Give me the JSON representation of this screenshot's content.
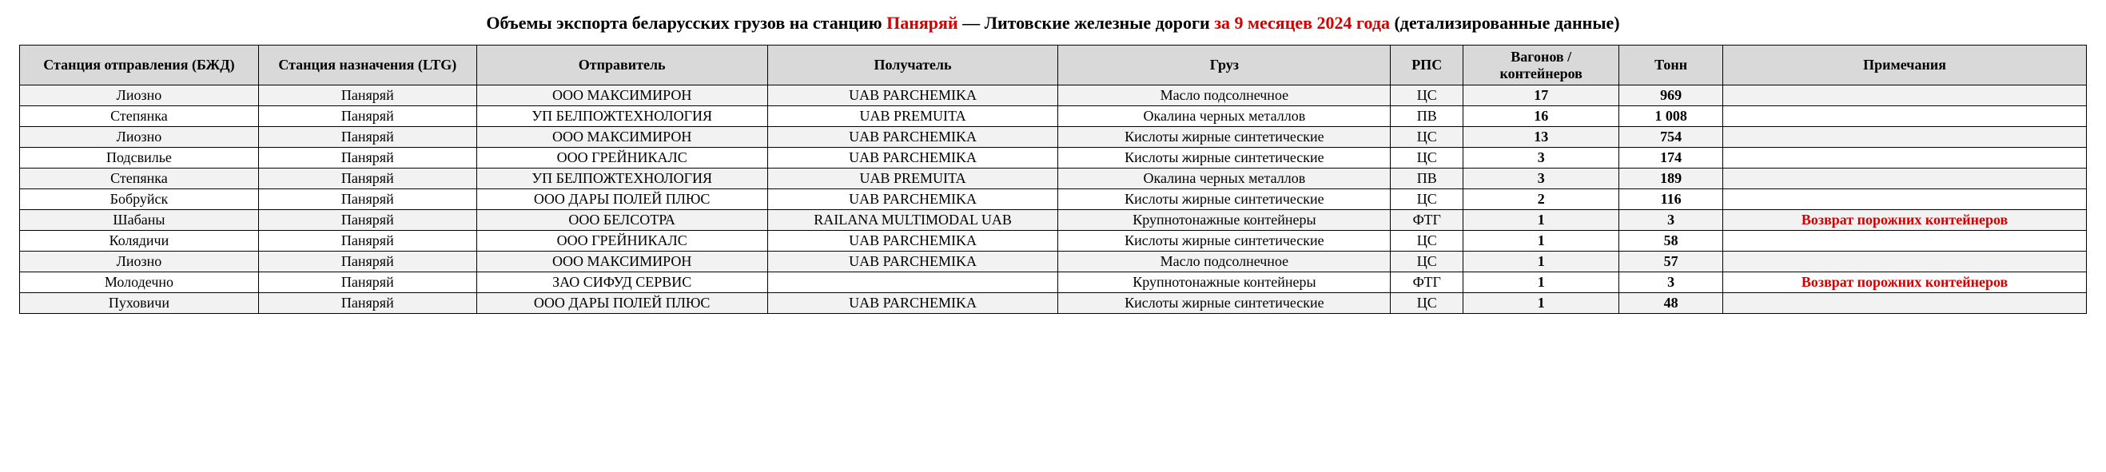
{
  "title": {
    "part1": "Объемы экспорта беларусских грузов на станцию ",
    "station": "Паняряй",
    "part2": " — Литовские железные дороги ",
    "period": "за 9 месяцев 2024 года",
    "part3": " (детализированные данные)"
  },
  "columns": [
    "Станция отправления (БЖД)",
    "Станция назначения (LTG)",
    "Отправитель",
    "Получатель",
    "Груз",
    "РПС",
    "Вагонов / контейнеров",
    "Тонн",
    "Примечания"
  ],
  "rows": [
    {
      "origin": "Лиозно",
      "dest": "Паняряй",
      "sender": "ООО МАКСИМИРОН",
      "recv": "UAB PARCHEMIKA",
      "cargo": "Масло подсолнечное",
      "rps": "ЦС",
      "wagons": "17",
      "tons": "969",
      "note": ""
    },
    {
      "origin": "Степянка",
      "dest": "Паняряй",
      "sender": "УП БЕЛПОЖТЕХНОЛОГИЯ",
      "recv": "UAB PREMUITA",
      "cargo": "Окалина черных металлов",
      "rps": "ПВ",
      "wagons": "16",
      "tons": "1 008",
      "note": ""
    },
    {
      "origin": "Лиозно",
      "dest": "Паняряй",
      "sender": "ООО МАКСИМИРОН",
      "recv": "UAB PARCHEMIKA",
      "cargo": "Кислоты жирные синтетические",
      "rps": "ЦС",
      "wagons": "13",
      "tons": "754",
      "note": ""
    },
    {
      "origin": "Подсвилье",
      "dest": "Паняряй",
      "sender": "ООО ГРЕЙНИКАЛС",
      "recv": "UAB PARCHEMIKA",
      "cargo": "Кислоты жирные синтетические",
      "rps": "ЦС",
      "wagons": "3",
      "tons": "174",
      "note": ""
    },
    {
      "origin": "Степянка",
      "dest": "Паняряй",
      "sender": "УП БЕЛПОЖТЕХНОЛОГИЯ",
      "recv": "UAB PREMUITA",
      "cargo": "Окалина черных металлов",
      "rps": "ПВ",
      "wagons": "3",
      "tons": "189",
      "note": ""
    },
    {
      "origin": "Бобруйск",
      "dest": "Паняряй",
      "sender": "ООО ДАРЫ ПОЛЕЙ ПЛЮС",
      "recv": "UAB PARCHEMIKA",
      "cargo": "Кислоты жирные синтетические",
      "rps": "ЦС",
      "wagons": "2",
      "tons": "116",
      "note": ""
    },
    {
      "origin": "Шабаны",
      "dest": "Паняряй",
      "sender": "ООО БЕЛСОТРА",
      "recv": "RAILANA MULTIMODAL UAB",
      "cargo": "Крупнотонажные контейнеры",
      "rps": "ФТГ",
      "wagons": "1",
      "tons": "3",
      "note": "Возврат порожних контейнеров"
    },
    {
      "origin": "Колядичи",
      "dest": "Паняряй",
      "sender": "ООО ГРЕЙНИКАЛС",
      "recv": "UAB PARCHEMIKA",
      "cargo": "Кислоты жирные синтетические",
      "rps": "ЦС",
      "wagons": "1",
      "tons": "58",
      "note": ""
    },
    {
      "origin": "Лиозно",
      "dest": "Паняряй",
      "sender": "ООО МАКСИМИРОН",
      "recv": "UAB PARCHEMIKA",
      "cargo": "Масло подсолнечное",
      "rps": "ЦС",
      "wagons": "1",
      "tons": "57",
      "note": ""
    },
    {
      "origin": "Молодечно",
      "dest": "Паняряй",
      "sender": "ЗАО СИФУД СЕРВИС",
      "recv": "",
      "cargo": "Крупнотонажные контейнеры",
      "rps": "ФТГ",
      "wagons": "1",
      "tons": "3",
      "note": "Возврат порожних контейнеров"
    },
    {
      "origin": "Пуховичи",
      "dest": "Паняряй",
      "sender": "ООО ДАРЫ ПОЛЕЙ ПЛЮС",
      "recv": "UAB PARCHEMIKA",
      "cargo": "Кислоты жирные синтетические",
      "rps": "ЦС",
      "wagons": "1",
      "tons": "48",
      "note": ""
    }
  ]
}
